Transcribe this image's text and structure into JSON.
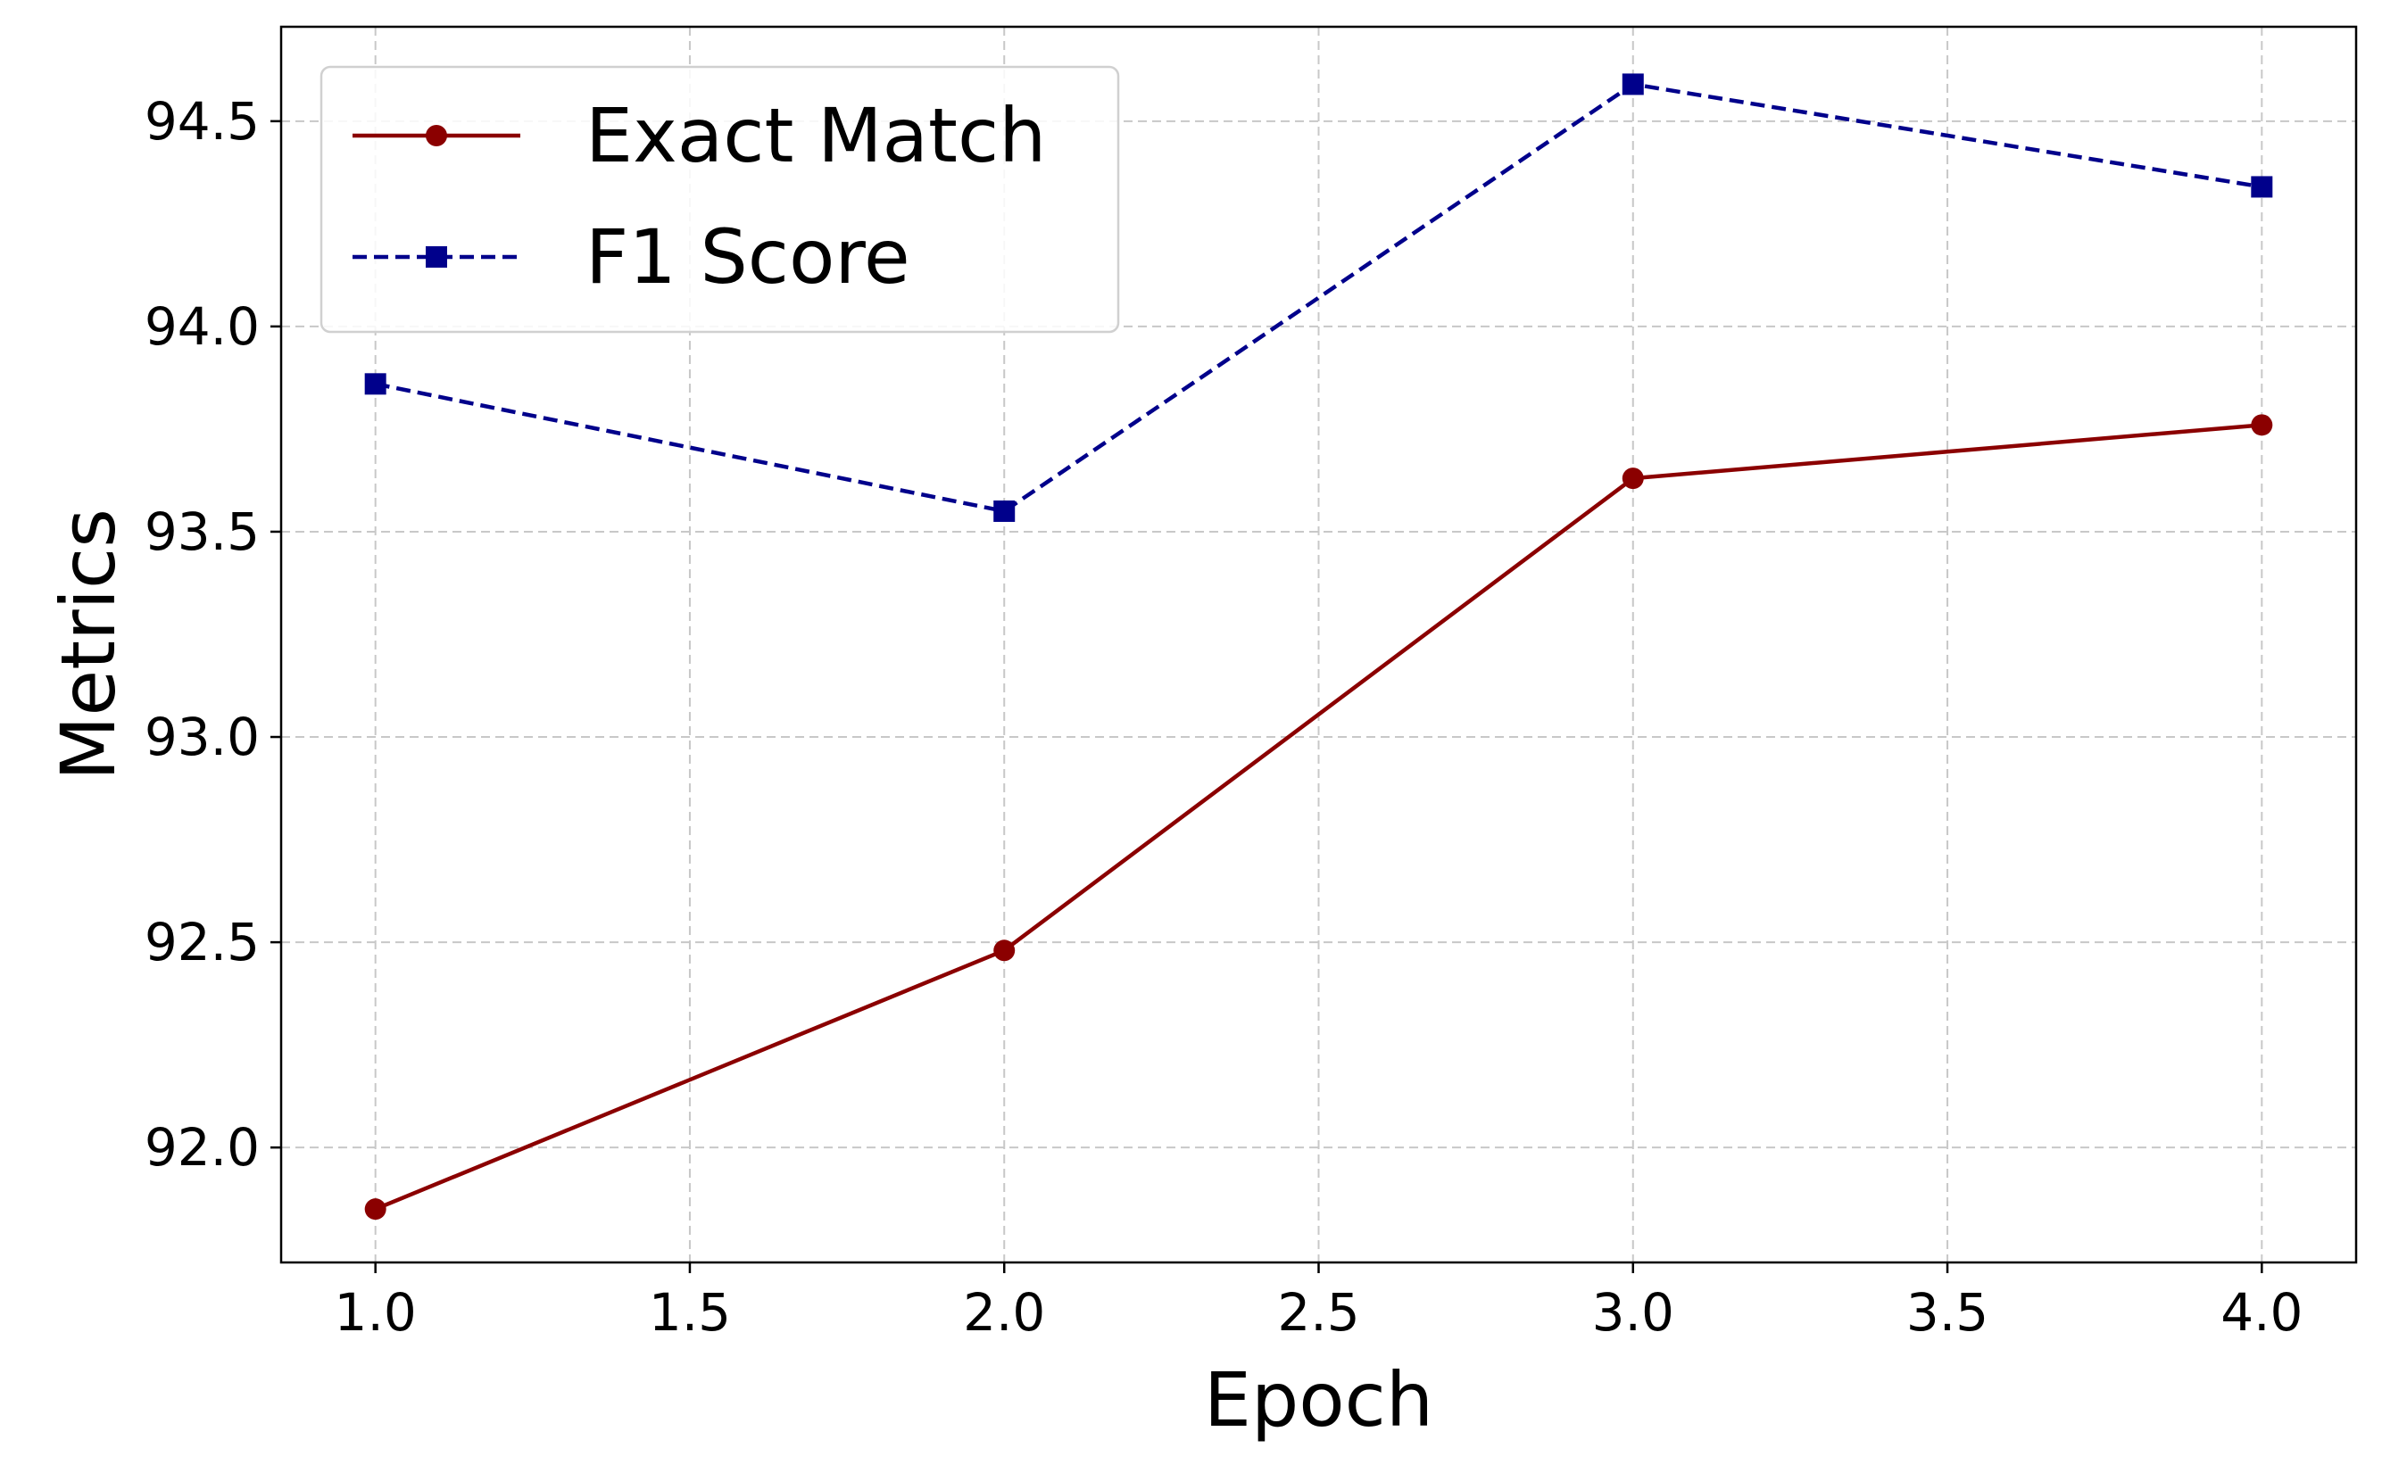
{
  "chart_data": {
    "type": "line",
    "title": "",
    "xlabel": "Epoch",
    "ylabel": "Metrics",
    "x": [
      1.0,
      2.0,
      3.0,
      4.0
    ],
    "xlim": [
      0.85,
      4.15
    ],
    "ylim": [
      91.72,
      94.73
    ],
    "xticks": [
      1.0,
      1.5,
      2.0,
      2.5,
      3.0,
      3.5,
      4.0
    ],
    "xtick_labels": [
      "1.0",
      "1.5",
      "2.0",
      "2.5",
      "3.0",
      "3.5",
      "4.0"
    ],
    "yticks": [
      92.0,
      92.5,
      93.0,
      93.5,
      94.0,
      94.5
    ],
    "ytick_labels": [
      "92.0",
      "92.5",
      "93.0",
      "93.5",
      "94.0",
      "94.5"
    ],
    "grid": true,
    "legend_position": "upper-left",
    "series": [
      {
        "name": "Exact Match",
        "values": [
          91.85,
          92.48,
          93.63,
          93.76
        ],
        "color": "#8b0000",
        "line_style": "solid",
        "marker": "circle"
      },
      {
        "name": "F1 Score",
        "values": [
          93.86,
          93.55,
          94.59,
          94.34
        ],
        "color": "#00008b",
        "line_style": "dashed",
        "marker": "square"
      }
    ]
  }
}
